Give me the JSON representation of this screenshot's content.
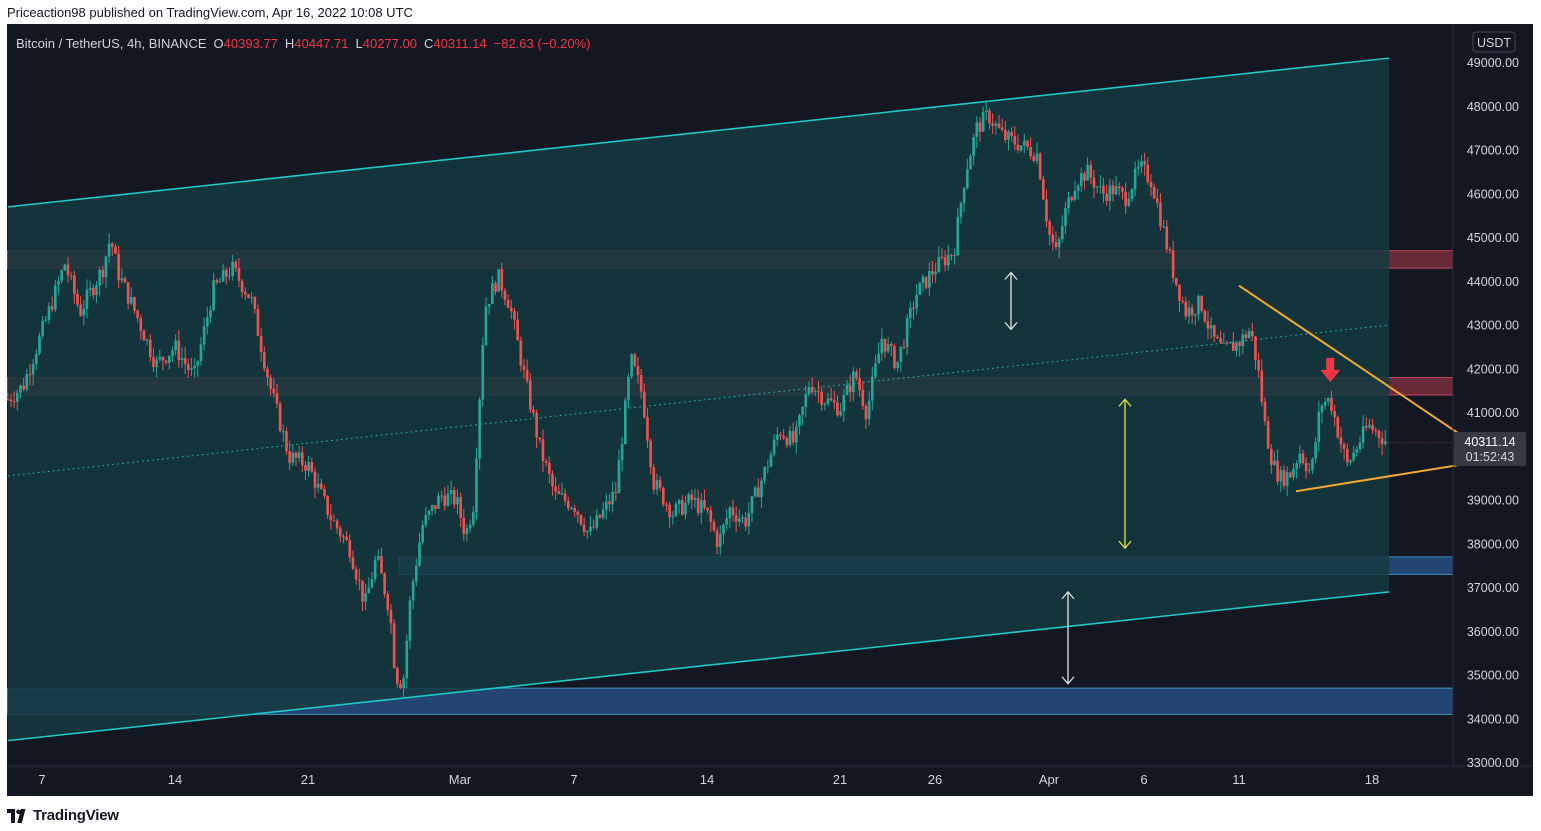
{
  "header": {
    "attribution": "Priceaction98 published on TradingView.com, Apr 16, 2022 10:08 UTC"
  },
  "legend": {
    "symbol": "Bitcoin / TetherUS, 4h, BINANCE",
    "open_label": "O",
    "open": "40393.77",
    "high_label": "H",
    "high": "40447.71",
    "low_label": "L",
    "low": "40277.00",
    "close_label": "C",
    "close": "40311.14",
    "change": "−82.63 (−0.20%)"
  },
  "price_axis": {
    "currency": "USDT",
    "last_price": "40311.14",
    "countdown": "01:52:43"
  },
  "footer": {
    "brand": "TradingView",
    "logo_icon": "tradingview-logo-icon"
  },
  "colors": {
    "background": "#131722",
    "up": "#26a69a",
    "down": "#ef5350",
    "channel": "#1fc8c8",
    "resistance_zone": "#b03a48",
    "support_zone": "#2a5a94",
    "triangle": "#f0a830",
    "arrow_white": "#e0e0e0",
    "arrow_yellow": "#e8e040",
    "arrow_red": "#f23645"
  },
  "chart_data": {
    "type": "candlestick",
    "symbol": "Bitcoin / TetherUS",
    "interval": "4h",
    "exchange": "BINANCE",
    "ylim": [
      33000,
      49500
    ],
    "y_ticks": [
      "49000.00",
      "48000.00",
      "47000.00",
      "46000.00",
      "45000.00",
      "44000.00",
      "43000.00",
      "42000.00",
      "41000.00",
      "40000.00",
      "39000.00",
      "38000.00",
      "37000.00",
      "36000.00",
      "35000.00",
      "34000.00",
      "33000.00"
    ],
    "x_ticks": [
      {
        "label": "7",
        "day": 0
      },
      {
        "label": "14",
        "day": 7
      },
      {
        "label": "21",
        "day": 14
      },
      {
        "label": "Mar",
        "day": 22
      },
      {
        "label": "7",
        "day": 28
      },
      {
        "label": "14",
        "day": 35
      },
      {
        "label": "21",
        "day": 42
      },
      {
        "label": "26",
        "day": 47
      },
      {
        "label": "Apr",
        "day": 53
      },
      {
        "label": "6",
        "day": 58
      },
      {
        "label": "11",
        "day": 63
      },
      {
        "label": "18",
        "day": 70
      }
    ],
    "price_path": [
      {
        "day": -1.8,
        "price": 41300
      },
      {
        "day": -1.0,
        "price": 41600
      },
      {
        "day": 0.2,
        "price": 43100
      },
      {
        "day": 1.2,
        "price": 44400
      },
      {
        "day": 2.0,
        "price": 43300
      },
      {
        "day": 3.2,
        "price": 44300
      },
      {
        "day": 3.6,
        "price": 45000
      },
      {
        "day": 4.0,
        "price": 44200
      },
      {
        "day": 5.0,
        "price": 43200
      },
      {
        "day": 6.0,
        "price": 42100
      },
      {
        "day": 7.0,
        "price": 42500
      },
      {
        "day": 8.0,
        "price": 41800
      },
      {
        "day": 9.0,
        "price": 43800
      },
      {
        "day": 10.0,
        "price": 44300
      },
      {
        "day": 11.0,
        "price": 43600
      },
      {
        "day": 12.0,
        "price": 41600
      },
      {
        "day": 13.0,
        "price": 40000
      },
      {
        "day": 14.0,
        "price": 39800
      },
      {
        "day": 15.2,
        "price": 38600
      },
      {
        "day": 16.2,
        "price": 37900
      },
      {
        "day": 17.0,
        "price": 36600
      },
      {
        "day": 17.6,
        "price": 37700
      },
      {
        "day": 18.3,
        "price": 36500
      },
      {
        "day": 18.6,
        "price": 35000
      },
      {
        "day": 19.0,
        "price": 34800
      },
      {
        "day": 19.4,
        "price": 36800
      },
      {
        "day": 20.0,
        "price": 38400
      },
      {
        "day": 21.0,
        "price": 39100
      },
      {
        "day": 21.8,
        "price": 39000
      },
      {
        "day": 22.3,
        "price": 38200
      },
      {
        "day": 22.7,
        "price": 38900
      },
      {
        "day": 23.3,
        "price": 43400
      },
      {
        "day": 24.0,
        "price": 44100
      },
      {
        "day": 24.6,
        "price": 43500
      },
      {
        "day": 25.4,
        "price": 41800
      },
      {
        "day": 26.2,
        "price": 40200
      },
      {
        "day": 27.0,
        "price": 39100
      },
      {
        "day": 28.0,
        "price": 38900
      },
      {
        "day": 28.8,
        "price": 38200
      },
      {
        "day": 29.5,
        "price": 38700
      },
      {
        "day": 30.2,
        "price": 39200
      },
      {
        "day": 31.0,
        "price": 42200
      },
      {
        "day": 31.6,
        "price": 41400
      },
      {
        "day": 32.2,
        "price": 39400
      },
      {
        "day": 33.2,
        "price": 38700
      },
      {
        "day": 34.2,
        "price": 39000
      },
      {
        "day": 35.0,
        "price": 38700
      },
      {
        "day": 35.6,
        "price": 38000
      },
      {
        "day": 36.2,
        "price": 38800
      },
      {
        "day": 37.0,
        "price": 38500
      },
      {
        "day": 38.0,
        "price": 39600
      },
      {
        "day": 38.8,
        "price": 40600
      },
      {
        "day": 39.6,
        "price": 40300
      },
      {
        "day": 40.4,
        "price": 41700
      },
      {
        "day": 41.2,
        "price": 41300
      },
      {
        "day": 42.0,
        "price": 41100
      },
      {
        "day": 42.8,
        "price": 41900
      },
      {
        "day": 43.4,
        "price": 41000
      },
      {
        "day": 44.2,
        "price": 42700
      },
      {
        "day": 45.0,
        "price": 42100
      },
      {
        "day": 46.0,
        "price": 43700
      },
      {
        "day": 47.0,
        "price": 44300
      },
      {
        "day": 48.0,
        "price": 44700
      },
      {
        "day": 48.6,
        "price": 46500
      },
      {
        "day": 49.2,
        "price": 47500
      },
      {
        "day": 49.8,
        "price": 47800
      },
      {
        "day": 50.6,
        "price": 47300
      },
      {
        "day": 51.6,
        "price": 47100
      },
      {
        "day": 52.4,
        "price": 46900
      },
      {
        "day": 53.0,
        "price": 45100
      },
      {
        "day": 53.4,
        "price": 44600
      },
      {
        "day": 53.8,
        "price": 45500
      },
      {
        "day": 54.4,
        "price": 46300
      },
      {
        "day": 55.0,
        "price": 46500
      },
      {
        "day": 55.8,
        "price": 46000
      },
      {
        "day": 56.4,
        "price": 46100
      },
      {
        "day": 57.0,
        "price": 45900
      },
      {
        "day": 57.8,
        "price": 46600
      },
      {
        "day": 58.4,
        "price": 46300
      },
      {
        "day": 59.0,
        "price": 45200
      },
      {
        "day": 59.6,
        "price": 44100
      },
      {
        "day": 60.2,
        "price": 43300
      },
      {
        "day": 61.0,
        "price": 43500
      },
      {
        "day": 61.6,
        "price": 42700
      },
      {
        "day": 62.2,
        "price": 42400
      },
      {
        "day": 63.0,
        "price": 42600
      },
      {
        "day": 63.6,
        "price": 42900
      },
      {
        "day": 64.0,
        "price": 42000
      },
      {
        "day": 64.4,
        "price": 40600
      },
      {
        "day": 64.8,
        "price": 39800
      },
      {
        "day": 65.2,
        "price": 39500
      },
      {
        "day": 65.7,
        "price": 39600
      },
      {
        "day": 66.2,
        "price": 40100
      },
      {
        "day": 66.8,
        "price": 39600
      },
      {
        "day": 67.3,
        "price": 41200
      },
      {
        "day": 67.8,
        "price": 41300
      },
      {
        "day": 68.3,
        "price": 40400
      },
      {
        "day": 68.7,
        "price": 39800
      },
      {
        "day": 69.3,
        "price": 40300
      },
      {
        "day": 69.8,
        "price": 40700
      },
      {
        "day": 70.4,
        "price": 40500
      },
      {
        "day": 70.8,
        "price": 40311
      }
    ],
    "last_price": 40311.14,
    "drawings": {
      "ascending_channel": {
        "upper": [
          {
            "day": -1.8,
            "price": 45700
          },
          {
            "day": 70.9,
            "price": 49100
          }
        ],
        "lower": [
          {
            "day": -1.8,
            "price": 33500
          },
          {
            "day": 70.9,
            "price": 36900
          }
        ],
        "mid": [
          {
            "day": -1.8,
            "price": 39550
          },
          {
            "day": 70.9,
            "price": 43000
          }
        ]
      },
      "resistance_zones": [
        {
          "from": 44300,
          "to": 44700
        },
        {
          "from": 41400,
          "to": 41800
        }
      ],
      "support_zones": [
        {
          "from": 37300,
          "to": 37700
        },
        {
          "from": 34100,
          "to": 34700
        }
      ],
      "triangle": {
        "upper": [
          {
            "day": 63.0,
            "price": 43900
          },
          {
            "day": 76.0,
            "price": 40100
          }
        ],
        "lower": [
          {
            "day": 66.0,
            "price": 39200
          },
          {
            "day": 76.0,
            "price": 39900
          }
        ]
      },
      "arrows": [
        {
          "type": "double",
          "day": 51.0,
          "from": 42900,
          "to": 44200,
          "color": "arrow_white"
        },
        {
          "type": "double",
          "day": 57.0,
          "from": 37900,
          "to": 41300,
          "color": "arrow_yellow"
        },
        {
          "type": "double",
          "day": 54.0,
          "from": 34800,
          "to": 36900,
          "color": "arrow_white"
        },
        {
          "type": "down",
          "day": 67.8,
          "price": 41700,
          "color": "arrow_red"
        }
      ]
    }
  }
}
